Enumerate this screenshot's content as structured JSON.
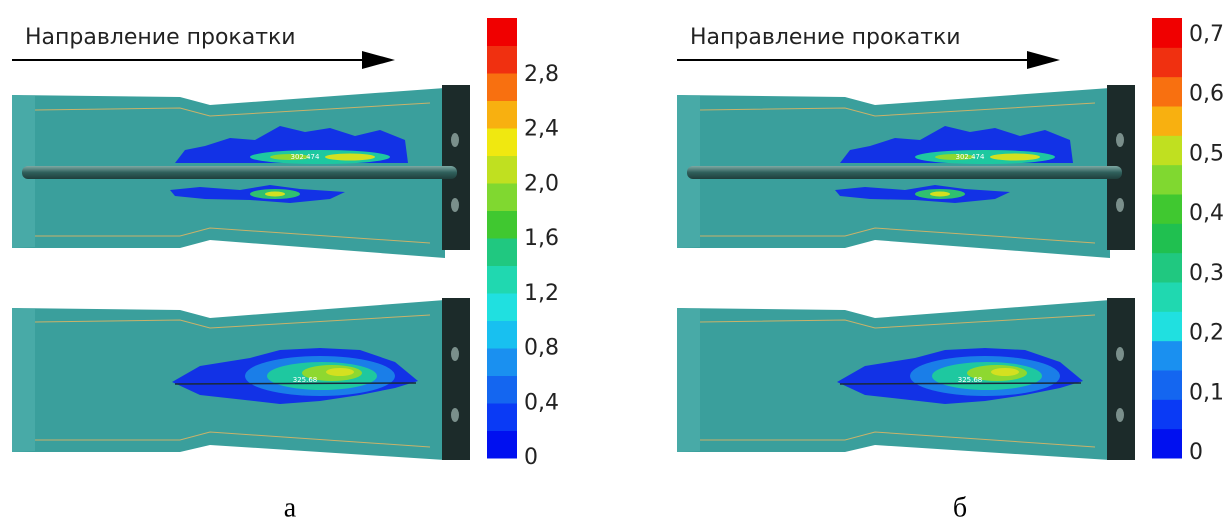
{
  "panels": [
    {
      "heading": "Направление прокатки",
      "caption": "а",
      "upper_label": "302.474",
      "lower_label": "325.68",
      "scale_labels": [
        "0",
        "0,4",
        "0,8",
        "1,2",
        "1,6",
        "2,0",
        "2,4",
        "2,8"
      ]
    },
    {
      "heading": "Направление прокатки",
      "caption": "б",
      "upper_label": "302.474",
      "lower_label": "325.68",
      "scale_labels": [
        "0",
        "0,1",
        "0,2",
        "0,3",
        "0,4",
        "0,5",
        "0,6",
        "0,7"
      ]
    }
  ]
}
